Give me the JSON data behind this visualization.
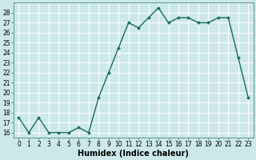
{
  "x": [
    0,
    1,
    2,
    3,
    4,
    5,
    6,
    7,
    8,
    9,
    10,
    11,
    12,
    13,
    14,
    15,
    16,
    17,
    18,
    19,
    20,
    21,
    22,
    23
  ],
  "y": [
    17.5,
    16.0,
    17.5,
    16.0,
    16.0,
    16.0,
    16.5,
    16.0,
    19.5,
    22.0,
    24.5,
    27.0,
    26.5,
    27.5,
    28.5,
    27.0,
    27.5,
    27.5,
    27.0,
    27.0,
    27.5,
    27.5,
    23.5,
    19.5
  ],
  "xlim": [
    -0.5,
    23.5
  ],
  "ylim": [
    15.5,
    29.0
  ],
  "yticks": [
    16,
    17,
    18,
    19,
    20,
    21,
    22,
    23,
    24,
    25,
    26,
    27,
    28
  ],
  "xticks": [
    0,
    1,
    2,
    3,
    4,
    5,
    6,
    7,
    8,
    9,
    10,
    11,
    12,
    13,
    14,
    15,
    16,
    17,
    18,
    19,
    20,
    21,
    22,
    23
  ],
  "xlabel": "Humidex (Indice chaleur)",
  "line_color": "#1a6b5a",
  "marker_color": "#1a6b5a",
  "bg_color": "#cce8e8",
  "grid_color": "#ffffff",
  "xlabel_fontsize": 7,
  "tick_fontsize": 5.5,
  "marker_size": 2.0,
  "line_width": 1.0
}
